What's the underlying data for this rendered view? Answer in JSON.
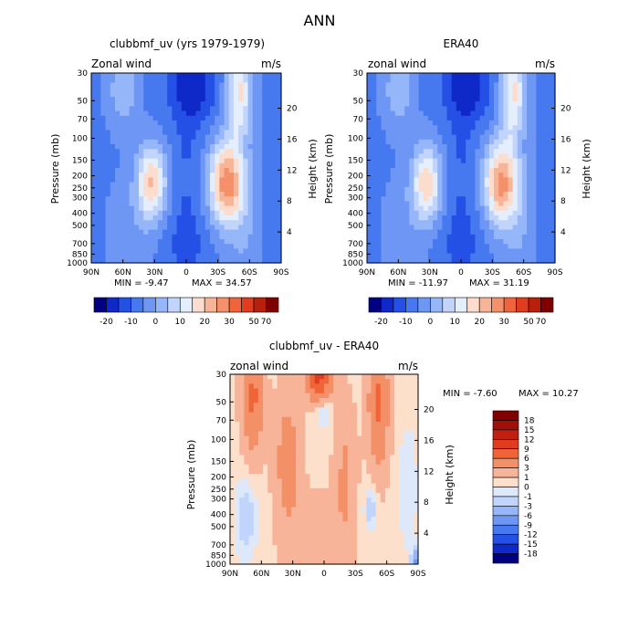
{
  "title": "ANN",
  "chart_data": [
    {
      "type": "heatmap",
      "title": "clubbmf_uv (yrs 1979-1979)",
      "left_label": "Zonal wind",
      "right_label": "m/s",
      "ylabel": "Pressure (mb)",
      "y2label": "Height (km)",
      "min_label": "MIN = -9.47",
      "max_label": "MAX = 34.57",
      "min": -9.47,
      "max": 34.57,
      "x_ticks": [
        "90N",
        "60N",
        "30N",
        "0",
        "30S",
        "60S",
        "90S"
      ],
      "y_ticks": [
        "30",
        "50",
        "70",
        "100",
        "150",
        "200",
        "250",
        "300",
        "400",
        "500",
        "700",
        "850",
        "1000"
      ],
      "y2_ticks": [
        "20",
        "16",
        "12",
        "8",
        "4"
      ],
      "colorbar_labels": [
        "-20",
        "-10",
        "0",
        "10",
        "20",
        "30",
        "50",
        "70"
      ],
      "features": [
        {
          "kind": "westerly_jet",
          "lat": -35,
          "pressure": 200,
          "value": 34.57
        },
        {
          "kind": "westerly_jet",
          "lat": 33,
          "pressure": 200,
          "value": 25
        },
        {
          "kind": "easterly_min",
          "lat": -5,
          "pressure": 50,
          "value": -9.47
        }
      ]
    },
    {
      "type": "heatmap",
      "title": "ERA40",
      "left_label": "zonal wind",
      "right_label": "m/s",
      "ylabel": "Pressure (mb)",
      "y2label": "Height (km)",
      "min_label": "MIN = -11.97",
      "max_label": "MAX = 31.19",
      "min": -11.97,
      "max": 31.19,
      "x_ticks": [
        "90N",
        "60N",
        "30N",
        "0",
        "30S",
        "60S",
        "90S"
      ],
      "y_ticks": [
        "30",
        "50",
        "70",
        "100",
        "150",
        "200",
        "250",
        "300",
        "400",
        "500",
        "700",
        "850",
        "1000"
      ],
      "y2_ticks": [
        "20",
        "16",
        "12",
        "8",
        "4"
      ],
      "colorbar_labels": [
        "-20",
        "-10",
        "0",
        "10",
        "20",
        "30",
        "50",
        "70"
      ],
      "features": [
        {
          "kind": "westerly_jet",
          "lat": -35,
          "pressure": 200,
          "value": 31.19
        },
        {
          "kind": "westerly_jet",
          "lat": 33,
          "pressure": 200,
          "value": 28
        },
        {
          "kind": "easterly_min",
          "lat": -5,
          "pressure": 50,
          "value": -11.97
        }
      ]
    },
    {
      "type": "heatmap",
      "title": "clubbmf_uv - ERA40",
      "left_label": "zonal wind",
      "right_label": "m/s",
      "ylabel": "Pressure (mb)",
      "y2label": "Height (km)",
      "min_label": "MIN = -7.60",
      "max_label": "MAX = 10.27",
      "min": -7.6,
      "max": 10.27,
      "x_ticks": [
        "90N",
        "60N",
        "30N",
        "0",
        "30S",
        "60S",
        "90S"
      ],
      "y_ticks": [
        "30",
        "50",
        "70",
        "100",
        "150",
        "200",
        "250",
        "300",
        "400",
        "500",
        "700",
        "850",
        "1000"
      ],
      "y2_ticks": [
        "20",
        "16",
        "12",
        "8",
        "4"
      ],
      "colorbar_labels": [
        "18",
        "15",
        "12",
        "9",
        "6",
        "3",
        "1",
        "0",
        "-1",
        "-3",
        "-6",
        "-9",
        "-12",
        "-15",
        "-18"
      ],
      "features": [
        {
          "kind": "positive_max",
          "lat": 0,
          "pressure": 30,
          "value": 10.27
        },
        {
          "kind": "positive",
          "lat": 70,
          "pressure": 50,
          "value": 6
        },
        {
          "kind": "positive",
          "lat": -55,
          "pressure": 50,
          "value": 6
        },
        {
          "kind": "negative_min",
          "lat": -88,
          "pressure": 1000,
          "value": -7.6
        }
      ]
    }
  ],
  "colors": {
    "cbar_top": [
      "#000080",
      "#0f28c8",
      "#2450e6",
      "#4678f0",
      "#6e96f5",
      "#96b6fa",
      "#c0d4fc",
      "#e4eefc",
      "#fcdccc",
      "#f8b497",
      "#f4906a",
      "#f0643c",
      "#e03c1e",
      "#b8200c",
      "#800000"
    ],
    "cbar_diff": [
      "#800000",
      "#a01008",
      "#c02010",
      "#e03c1e",
      "#f06438",
      "#f49068",
      "#f8b498",
      "#fde0cc",
      "#dde9fb",
      "#c0d4fc",
      "#96b6fa",
      "#6e96f5",
      "#4678f0",
      "#2450e6",
      "#0f28c8",
      "#000080"
    ]
  }
}
